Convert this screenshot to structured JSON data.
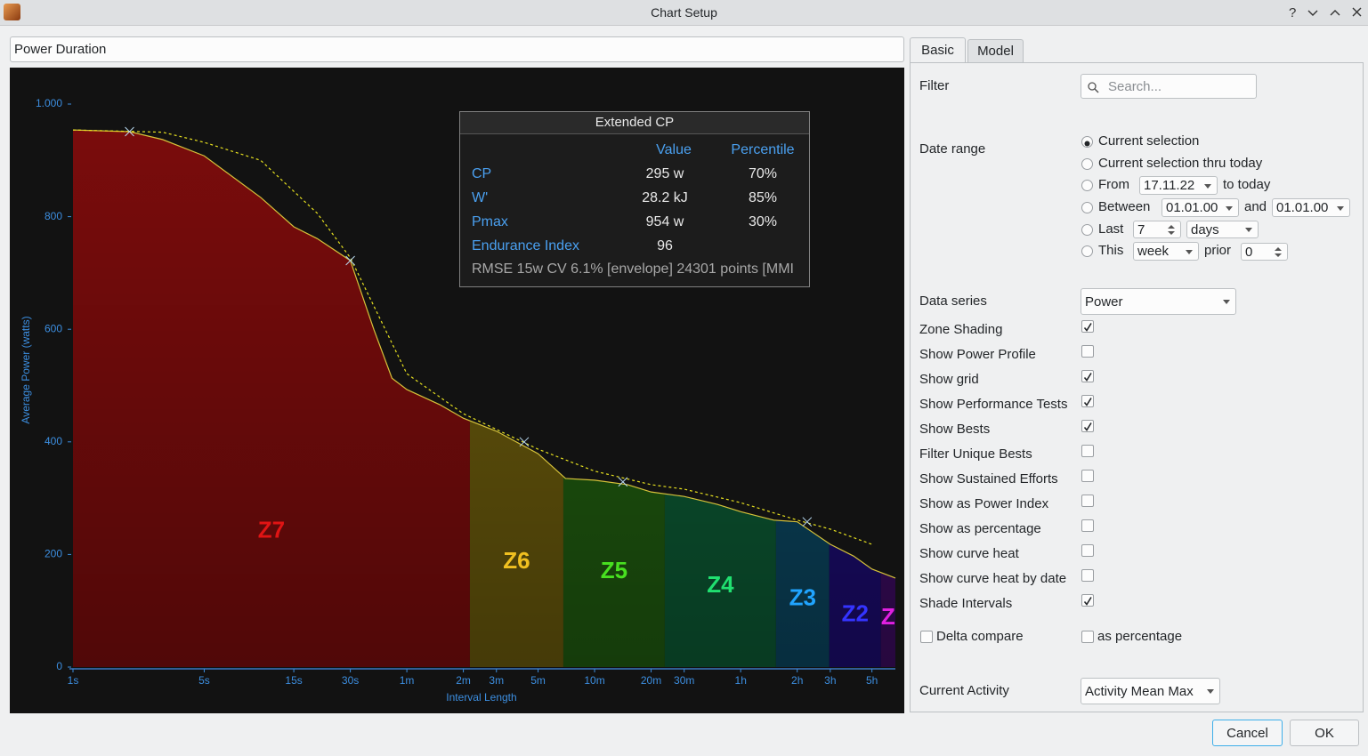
{
  "window": {
    "title": "Chart Setup"
  },
  "chart_name": "Power Duration",
  "chart_data": {
    "type": "area",
    "x_label": "Interval Length",
    "y_label": "Average Power (watts)",
    "x_log": true,
    "xlim": [
      1,
      24000
    ],
    "xticks": [
      {
        "value": 1,
        "label": "1s"
      },
      {
        "value": 5,
        "label": "5s"
      },
      {
        "value": 15,
        "label": "15s"
      },
      {
        "value": 30,
        "label": "30s"
      },
      {
        "value": 60,
        "label": "1m"
      },
      {
        "value": 120,
        "label": "2m"
      },
      {
        "value": 180,
        "label": "3m"
      },
      {
        "value": 300,
        "label": "5m"
      },
      {
        "value": 600,
        "label": "10m"
      },
      {
        "value": 1200,
        "label": "20m"
      },
      {
        "value": 1800,
        "label": "30m"
      },
      {
        "value": 3600,
        "label": "1h"
      },
      {
        "value": 7200,
        "label": "2h"
      },
      {
        "value": 10800,
        "label": "3h"
      },
      {
        "value": 18000,
        "label": "5h"
      }
    ],
    "ylim": [
      0,
      1000
    ],
    "yticks": [
      0,
      200,
      400,
      600,
      800,
      {
        "value": 1000,
        "label": "1.000"
      }
    ],
    "curve": {
      "color": "#d6c23a",
      "x": [
        1,
        2,
        3,
        5,
        10,
        15,
        20,
        30,
        40,
        50,
        60,
        90,
        120,
        180,
        300,
        420,
        600,
        900,
        1200,
        1800,
        2700,
        3600,
        5400,
        7200,
        10800,
        14400,
        18000,
        24000
      ],
      "values": [
        954,
        951,
        937,
        908,
        834,
        782,
        761,
        722,
        600,
        513,
        493,
        466,
        442,
        419,
        379,
        335,
        332,
        324,
        311,
        303,
        289,
        276,
        261,
        258,
        218,
        197,
        174,
        158
      ]
    },
    "model": {
      "color": "#e6e020",
      "x": [
        1,
        3,
        5,
        10,
        20,
        30,
        60,
        120,
        300,
        600,
        1200,
        1800,
        3600,
        7200,
        10800,
        18000
      ],
      "values": [
        954,
        950,
        932,
        900,
        806,
        727,
        521,
        450,
        387,
        348,
        324,
        316,
        292,
        261,
        245,
        218
      ]
    },
    "tests": {
      "color": "#b8d8f0",
      "x": [
        2,
        30,
        253,
        849,
        8130
      ],
      "values": [
        951,
        722,
        400,
        329,
        258
      ]
    },
    "zone_bounds": [
      130,
      409,
      1419,
      5550,
      10670,
      20100
    ],
    "zones": [
      {
        "label": "Z7",
        "color": "#7c0c0c",
        "label_color": "#e01414"
      },
      {
        "label": "Z6",
        "color": "#6a5a0c",
        "label_color": "#f0c020"
      },
      {
        "label": "Z5",
        "color": "#205c10",
        "label_color": "#48e020"
      },
      {
        "label": "Z4",
        "color": "#0c5a34",
        "label_color": "#20e070"
      },
      {
        "label": "Z3",
        "color": "#0b4660",
        "label_color": "#20a4ff"
      },
      {
        "label": "Z2",
        "color": "#1c0c70",
        "label_color": "#3434ff"
      },
      {
        "label": "Z",
        "color": "#3c0c60",
        "label_color": "#e020e0"
      }
    ]
  },
  "model_box": {
    "title": "Extended CP",
    "headers": [
      "Value",
      "Percentile"
    ],
    "rows": [
      [
        "CP",
        "295 w",
        "70%"
      ],
      [
        "W'",
        "28.2 kJ",
        "85%"
      ],
      [
        "Pmax",
        "954 w",
        "30%"
      ],
      [
        "Endurance Index",
        "96"
      ]
    ],
    "footer": "RMSE 15w CV 6.1% [envelope] 24301 points [MMI"
  },
  "tabs": {
    "items": [
      "Basic",
      "Model"
    ],
    "active": 0
  },
  "filter": {
    "label": "Filter",
    "placeholder": "Search..."
  },
  "date_range": {
    "label": "Date range",
    "selected": 0,
    "options": [
      {
        "text": "Current selection"
      },
      {
        "text": "Current selection thru today"
      },
      {
        "text": "From",
        "date": "17.11.22",
        "after": "to today"
      },
      {
        "text": "Between",
        "date": "01.01.00",
        "and": "and",
        "date2": "01.01.00"
      },
      {
        "text": "Last",
        "count": 7,
        "unit": "days"
      },
      {
        "text": "This",
        "unit": "week",
        "prior": "prior",
        "count": 0
      }
    ]
  },
  "data_series": {
    "label": "Data series",
    "value": "Power"
  },
  "checks": [
    {
      "label": "Zone Shading",
      "checked": true
    },
    {
      "label": "Show Power Profile",
      "checked": false
    },
    {
      "label": "Show grid",
      "checked": true
    },
    {
      "label": "Show Performance Tests",
      "checked": true
    },
    {
      "label": "Show Bests",
      "checked": true
    },
    {
      "label": "Filter Unique Bests",
      "checked": false
    },
    {
      "label": "Show Sustained Efforts",
      "checked": false
    },
    {
      "label": "Show as Power Index",
      "checked": false
    },
    {
      "label": "Show as percentage",
      "checked": false
    },
    {
      "label": "Show curve heat",
      "checked": false
    },
    {
      "label": "Show curve heat by date",
      "checked": false
    },
    {
      "label": "Shade Intervals",
      "checked": true
    }
  ],
  "delta": {
    "label": "Delta compare",
    "checked": false
  },
  "delta_pct": {
    "label": "as percentage",
    "checked": false
  },
  "current_activity": {
    "label": "Current Activity",
    "value": "Activity Mean Max"
  },
  "buttons": [
    "Cancel",
    "OK"
  ]
}
